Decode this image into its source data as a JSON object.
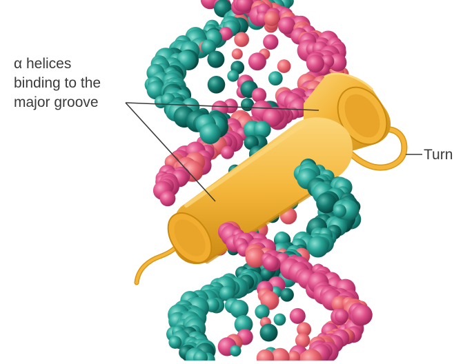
{
  "labels": {
    "helices_line1": "α helices",
    "helices_line2": "binding to the",
    "helices_line3": "major groove",
    "turn": "Turn"
  },
  "colors": {
    "pink": "#e0508a",
    "pink_dark": "#b8306a",
    "salmon": "#ee6f78",
    "teal": "#2aa89a",
    "teal_dark": "#137a70",
    "teal_light": "#55c2b2",
    "helix_yellow": "#f4b63a",
    "helix_shadow": "#d89618",
    "helix_highlight": "#fbd67a",
    "leader_line": "#3a3a3a"
  }
}
